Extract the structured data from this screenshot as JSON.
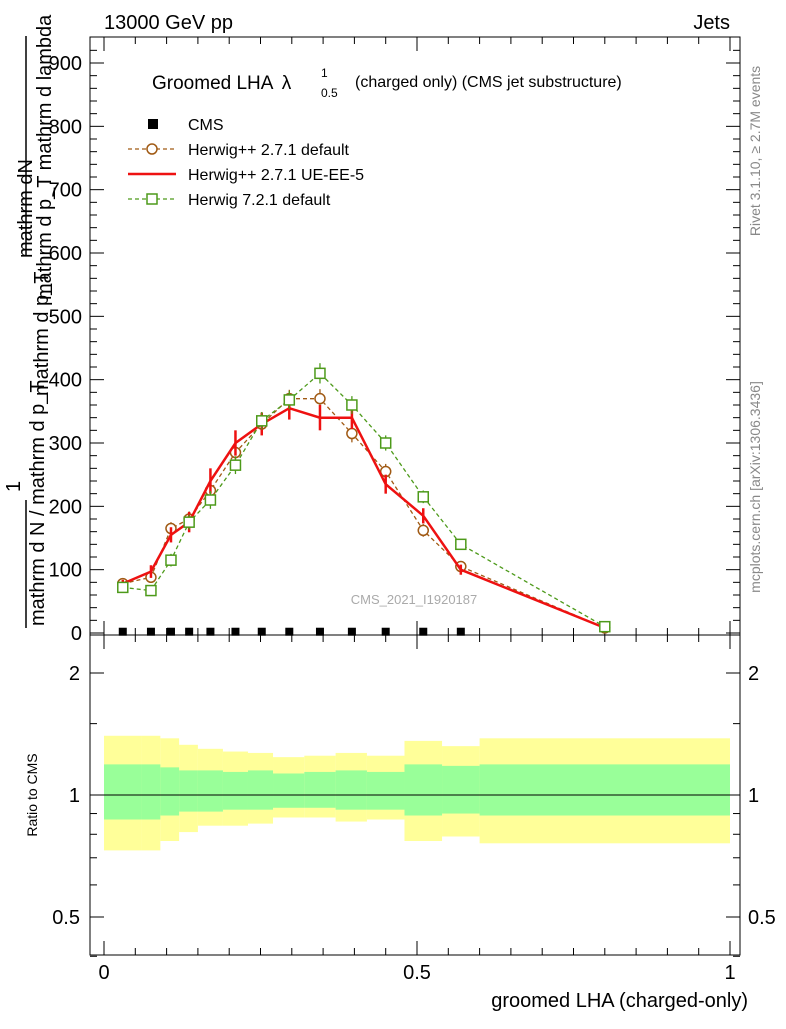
{
  "header": {
    "left": "13000 GeV pp",
    "right": "Jets"
  },
  "side": {
    "rivet": "Rivet 3.1.10, ≥ 2.7M events",
    "mcplots": "mcplots.cern.ch [arXiv:1306.3436]"
  },
  "watermark": "CMS_2021_I1920187",
  "plot_title": {
    "main": "Groomed LHA",
    "lambda": "λ",
    "sup": "1",
    "sub": "0.5",
    "rest": "(charged only) (CMS jet substructure)"
  },
  "ylabel_lines": [
    "mathrm dN",
    "mathrm d p_T mathrm d lambda",
    "mathrm d p_T",
    "1",
    "mathrm d N / mathrm d p_T"
  ],
  "ratio_ylabel": "Ratio to CMS",
  "xlabel": "groomed LHA (charged-only)",
  "colors": {
    "cms": "#000000",
    "hw_default": "#a05a14",
    "hw_ueee5": "#ee1111",
    "hw72": "#4d9a1a",
    "band_inner": "#99ff99",
    "band_outer": "#ffff99"
  },
  "chart_data": {
    "type": "line",
    "xlim": [
      0,
      1
    ],
    "ylim": [
      0,
      930
    ],
    "ratio_ylim": [
      0.35,
      2.25
    ],
    "x_ticks": [
      0,
      0.5,
      1
    ],
    "x_tick_labels": [
      "0",
      "0.5",
      "1"
    ],
    "y_ticks": [
      0,
      100,
      200,
      300,
      400,
      500,
      600,
      700,
      800,
      900
    ],
    "y_tick_labels": [
      "0",
      "100",
      "200",
      "300",
      "400",
      "500",
      "600",
      "700",
      "800",
      "900"
    ],
    "ratio_ticks": [
      0.5,
      1,
      2
    ],
    "ratio_tick_labels": [
      "0.5",
      "1",
      "2"
    ],
    "legend": [
      {
        "key": "cms",
        "label": "CMS",
        "marker": "square-filled"
      },
      {
        "key": "hw_default",
        "label": "Herwig++ 2.7.1 default",
        "marker": "circle-dashed"
      },
      {
        "key": "hw_ueee5",
        "label": "Herwig++ 2.7.1 UE-EE-5",
        "marker": "solid-line"
      },
      {
        "key": "hw72",
        "label": "Herwig 7.2.1 default",
        "marker": "square-dashed"
      }
    ],
    "cms": {
      "name": "CMS",
      "x": [
        0.03,
        0.075,
        0.107,
        0.136,
        0.17,
        0.21,
        0.252,
        0.296,
        0.345,
        0.396,
        0.45,
        0.51,
        0.57
      ],
      "y": [
        2,
        2,
        2,
        2,
        2,
        2,
        2,
        2,
        2,
        2,
        2,
        2,
        2
      ]
    },
    "series": [
      {
        "name": "Herwig++ 2.7.1 default",
        "key": "hw_default",
        "marker": "circle",
        "dashed": true,
        "x": [
          0.03,
          0.075,
          0.107,
          0.136,
          0.17,
          0.21,
          0.252,
          0.296,
          0.345,
          0.396,
          0.45,
          0.51,
          0.57,
          0.8
        ],
        "y": [
          78,
          88,
          165,
          180,
          225,
          285,
          330,
          370,
          370,
          315,
          255,
          162,
          105,
          8
        ],
        "err": [
          6,
          8,
          10,
          12,
          12,
          14,
          14,
          14,
          15,
          14,
          12,
          10,
          8,
          2
        ]
      },
      {
        "name": "Herwig++ 2.7.1 UE-EE-5",
        "key": "hw_ueee5",
        "marker": "none",
        "dashed": false,
        "x": [
          0.03,
          0.075,
          0.107,
          0.136,
          0.17,
          0.21,
          0.252,
          0.296,
          0.345,
          0.396,
          0.45,
          0.51,
          0.57,
          0.8
        ],
        "y": [
          78,
          97,
          155,
          175,
          240,
          300,
          330,
          355,
          340,
          340,
          235,
          185,
          100,
          8
        ],
        "err": [
          6,
          10,
          12,
          16,
          20,
          20,
          18,
          18,
          20,
          18,
          15,
          12,
          8,
          2
        ]
      },
      {
        "name": "Herwig 7.2.1 default",
        "key": "hw72",
        "marker": "square",
        "dashed": true,
        "x": [
          0.03,
          0.075,
          0.107,
          0.136,
          0.17,
          0.21,
          0.252,
          0.296,
          0.345,
          0.396,
          0.45,
          0.51,
          0.57,
          0.8
        ],
        "y": [
          72,
          67,
          115,
          175,
          210,
          265,
          335,
          368,
          410,
          360,
          300,
          215,
          140,
          10
        ],
        "err": [
          5,
          6,
          10,
          12,
          14,
          14,
          14,
          14,
          16,
          14,
          12,
          10,
          7,
          2
        ]
      }
    ],
    "ratio_bands": {
      "edges": [
        0.0,
        0.06,
        0.09,
        0.12,
        0.15,
        0.19,
        0.23,
        0.27,
        0.32,
        0.37,
        0.42,
        0.48,
        0.54,
        0.6,
        1.0
      ],
      "inner_lo": [
        0.87,
        0.87,
        0.89,
        0.91,
        0.91,
        0.92,
        0.92,
        0.93,
        0.93,
        0.92,
        0.92,
        0.89,
        0.9,
        0.89
      ],
      "inner_hi": [
        1.19,
        1.19,
        1.17,
        1.15,
        1.15,
        1.14,
        1.15,
        1.13,
        1.14,
        1.15,
        1.14,
        1.19,
        1.18,
        1.19
      ],
      "outer_lo": [
        0.73,
        0.73,
        0.77,
        0.81,
        0.84,
        0.84,
        0.85,
        0.88,
        0.88,
        0.86,
        0.87,
        0.77,
        0.79,
        0.76
      ],
      "outer_hi": [
        1.4,
        1.4,
        1.38,
        1.33,
        1.3,
        1.28,
        1.27,
        1.24,
        1.25,
        1.27,
        1.25,
        1.36,
        1.32,
        1.38
      ]
    }
  }
}
